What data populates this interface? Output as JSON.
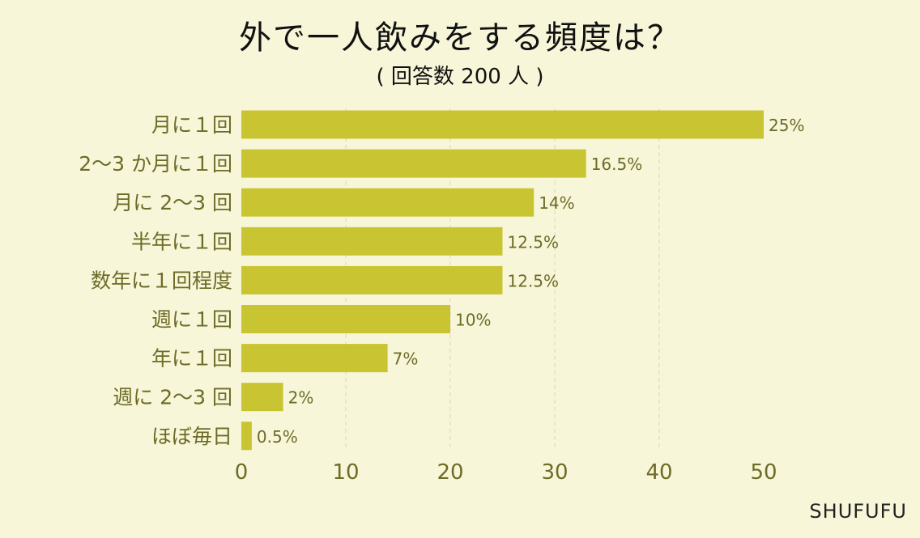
{
  "chart_data": {
    "type": "bar",
    "orientation": "horizontal",
    "title": "外で一人飲みをする頻度は？",
    "subtitle": "( 回答数 200 人 )",
    "categories": [
      "月に１回",
      "2～3 か月に１回",
      "月に 2～3 回",
      "半年に１回",
      "数年に１回程度",
      "週に１回",
      "年に１回",
      "週に 2～3 回",
      "ほぼ毎日"
    ],
    "values": [
      50,
      33,
      28,
      25,
      25,
      20,
      14,
      4,
      1
    ],
    "value_labels": [
      "25%",
      "16.5%",
      "14%",
      "12.5%",
      "12.5%",
      "10%",
      "7%",
      "2%",
      "0.5%"
    ],
    "xlim": [
      0,
      50
    ],
    "xticks": [
      0,
      10,
      20,
      30,
      40,
      50
    ],
    "grid": true,
    "bar_color": "#c9c532",
    "label_color": "#6d6b27"
  },
  "footer": "SHUFUFU"
}
